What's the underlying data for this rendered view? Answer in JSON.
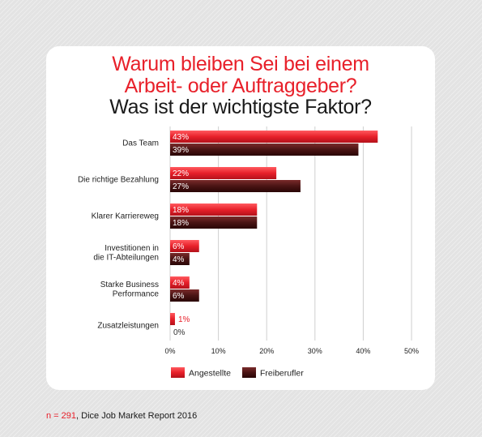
{
  "title": {
    "line1": "Warum bleiben Sei bei einem",
    "line2": "Arbeit- oder Auftraggeber?",
    "line3": "Was ist der wichtigste Faktor?"
  },
  "colors": {
    "angestellte": "#e8202a",
    "freiberufler": "#4a1414",
    "grid": "#cfcfcf"
  },
  "chart_data": {
    "type": "bar",
    "orientation": "horizontal",
    "categories": [
      [
        "Das Team"
      ],
      [
        "Die richtige Bezahlung"
      ],
      [
        "Klarer Karriereweg"
      ],
      [
        "Investitionen in",
        "die IT-Abteilungen"
      ],
      [
        "Starke Business",
        "Performance"
      ],
      [
        "Zusatzleistungen"
      ]
    ],
    "series": [
      {
        "name": "Angestellte",
        "values": [
          43,
          22,
          18,
          6,
          4,
          1
        ],
        "labels": [
          "43%",
          "22%",
          "18%",
          "6%",
          "4%",
          "1%"
        ]
      },
      {
        "name": "Freiberufler",
        "values": [
          39,
          27,
          18,
          4,
          6,
          0
        ],
        "labels": [
          "39%",
          "27%",
          "18%",
          "4%",
          "6%",
          "0%"
        ]
      }
    ],
    "xlim": [
      0,
      50
    ],
    "xticks": [
      0,
      10,
      20,
      30,
      40,
      50
    ],
    "xtick_labels": [
      "0%",
      "10%",
      "20%",
      "30%",
      "40%",
      "50%"
    ],
    "grid": true,
    "legend_placement": "bottom"
  },
  "footer": {
    "n": "n = 291",
    "source": ", Dice Job Market Report 2016"
  }
}
